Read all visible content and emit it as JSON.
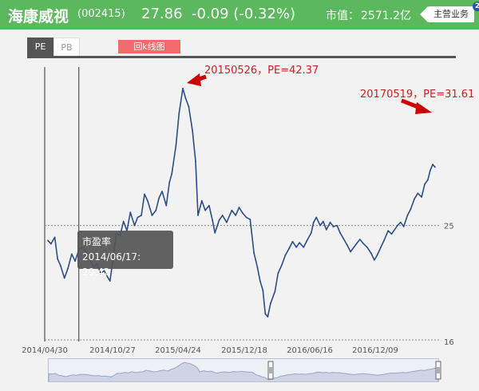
{
  "header": {
    "stock_name": "海康威视",
    "stock_code": "(002415)",
    "price": "27.86",
    "change": "-0.09 (-0.32%)",
    "market_cap_label": "市值：",
    "market_cap_value": "2571.2亿",
    "business_button": "主营业务",
    "badge_count": "2",
    "bg_color": "#5cb85c"
  },
  "tabs": [
    {
      "label": "PE",
      "active": true
    },
    {
      "label": "PB",
      "active": false
    }
  ],
  "kline_button": "回k线图",
  "tooltip": {
    "series_name": "市盈率",
    "text": "2014/06/17: 20.42"
  },
  "annotations": [
    {
      "label": "20150526，PE=42.37",
      "color": "#cc1f1f"
    },
    {
      "label": "20170519，PE=31.61",
      "color": "#cc1f1f"
    }
  ],
  "chart_data": {
    "type": "line",
    "series": [
      {
        "name": "市盈率",
        "color": "#2b4e86",
        "points": [
          [
            "2014-04-30",
            23.6
          ],
          [
            "2014-05-09",
            23.3
          ],
          [
            "2014-05-20",
            23.9
          ],
          [
            "2014-05-28",
            22.0
          ],
          [
            "2014-06-06",
            21.4
          ],
          [
            "2014-06-17",
            20.42
          ],
          [
            "2014-06-27",
            21.2
          ],
          [
            "2014-07-08",
            22.4
          ],
          [
            "2014-07-18",
            21.8
          ],
          [
            "2014-07-29",
            22.8
          ],
          [
            "2014-08-08",
            23.0
          ],
          [
            "2014-08-19",
            22.6
          ],
          [
            "2014-08-29",
            22.0
          ],
          [
            "2014-09-09",
            21.3
          ],
          [
            "2014-09-19",
            21.6
          ],
          [
            "2014-09-30",
            20.8
          ],
          [
            "2014-10-10",
            21.0
          ],
          [
            "2014-10-20",
            20.5
          ],
          [
            "2014-10-27",
            20.2
          ],
          [
            "2014-11-05",
            22.0
          ],
          [
            "2014-11-14",
            24.3
          ],
          [
            "2014-11-25",
            24.0
          ],
          [
            "2014-12-05",
            25.4
          ],
          [
            "2014-12-15",
            24.5
          ],
          [
            "2014-12-25",
            26.3
          ],
          [
            "2015-01-06",
            25.0
          ],
          [
            "2015-01-15",
            25.8
          ],
          [
            "2015-01-26",
            26.0
          ],
          [
            "2015-02-04",
            28.2
          ],
          [
            "2015-02-13",
            27.5
          ],
          [
            "2015-02-26",
            26.0
          ],
          [
            "2015-03-09",
            26.5
          ],
          [
            "2015-03-18",
            27.8
          ],
          [
            "2015-03-27",
            28.5
          ],
          [
            "2015-04-08",
            27.0
          ],
          [
            "2015-04-17",
            29.5
          ],
          [
            "2015-04-24",
            30.5
          ],
          [
            "2015-05-06",
            34.0
          ],
          [
            "2015-05-15",
            38.5
          ],
          [
            "2015-05-26",
            42.37
          ],
          [
            "2015-06-03",
            40.8
          ],
          [
            "2015-06-12",
            39.5
          ],
          [
            "2015-06-23",
            36.0
          ],
          [
            "2015-07-02",
            32.0
          ],
          [
            "2015-07-09",
            26.0
          ],
          [
            "2015-07-20",
            27.5
          ],
          [
            "2015-07-30",
            26.5
          ],
          [
            "2015-08-10",
            27.0
          ],
          [
            "2015-08-20",
            25.5
          ],
          [
            "2015-08-27",
            24.3
          ],
          [
            "2015-09-08",
            25.5
          ],
          [
            "2015-09-18",
            26.0
          ],
          [
            "2015-09-30",
            25.3
          ],
          [
            "2015-10-15",
            26.5
          ],
          [
            "2015-10-26",
            26.0
          ],
          [
            "2015-11-05",
            26.8
          ],
          [
            "2015-11-16",
            26.2
          ],
          [
            "2015-11-26",
            25.8
          ],
          [
            "2015-12-07",
            25.6
          ],
          [
            "2015-12-18",
            22.5
          ],
          [
            "2015-12-28",
            21.3
          ],
          [
            "2016-01-05",
            20.2
          ],
          [
            "2016-01-13",
            19.5
          ],
          [
            "2016-01-20",
            17.8
          ],
          [
            "2016-01-27",
            17.6
          ],
          [
            "2016-02-04",
            18.5
          ],
          [
            "2016-02-17",
            19.4
          ],
          [
            "2016-02-26",
            20.8
          ],
          [
            "2016-03-08",
            21.5
          ],
          [
            "2016-03-18",
            22.3
          ],
          [
            "2016-03-29",
            22.9
          ],
          [
            "2016-04-08",
            23.5
          ],
          [
            "2016-04-19",
            23.0
          ],
          [
            "2016-04-28",
            23.4
          ],
          [
            "2016-05-10",
            23.0
          ],
          [
            "2016-05-20",
            23.6
          ],
          [
            "2016-06-01",
            24.3
          ],
          [
            "2016-06-08",
            25.3
          ],
          [
            "2016-06-16",
            25.8
          ],
          [
            "2016-06-27",
            25.0
          ],
          [
            "2016-07-06",
            25.4
          ],
          [
            "2016-07-15",
            24.6
          ],
          [
            "2016-07-26",
            25.3
          ],
          [
            "2016-08-04",
            24.9
          ],
          [
            "2016-08-15",
            25.0
          ],
          [
            "2016-08-24",
            24.3
          ],
          [
            "2016-09-02",
            23.8
          ],
          [
            "2016-09-13",
            23.2
          ],
          [
            "2016-09-23",
            22.6
          ],
          [
            "2016-10-10",
            23.3
          ],
          [
            "2016-10-20",
            23.7
          ],
          [
            "2016-10-31",
            23.3
          ],
          [
            "2016-11-10",
            23.0
          ],
          [
            "2016-11-21",
            22.5
          ],
          [
            "2016-12-01",
            21.9
          ],
          [
            "2016-12-09",
            22.3
          ],
          [
            "2016-12-20",
            23.0
          ],
          [
            "2016-12-29",
            23.6
          ],
          [
            "2017-01-10",
            24.5
          ],
          [
            "2017-01-20",
            24.2
          ],
          [
            "2017-02-06",
            25.0
          ],
          [
            "2017-02-15",
            25.3
          ],
          [
            "2017-02-24",
            24.9
          ],
          [
            "2017-03-07",
            26.0
          ],
          [
            "2017-03-16",
            26.6
          ],
          [
            "2017-03-27",
            27.7
          ],
          [
            "2017-04-06",
            28.3
          ],
          [
            "2017-04-17",
            27.9
          ],
          [
            "2017-04-26",
            29.3
          ],
          [
            "2017-05-05",
            29.8
          ],
          [
            "2017-05-12",
            30.9
          ],
          [
            "2017-05-19",
            31.61
          ],
          [
            "2017-05-26",
            31.3
          ]
        ]
      }
    ],
    "x_ticks": [
      "2014/04/30",
      "2014/10/27",
      "2015/04/24",
      "2015/12/18",
      "2016/06/16",
      "2016/12/09"
    ],
    "y_ticks": [
      16,
      25
    ],
    "ylim": [
      16,
      46
    ],
    "log_scale": true,
    "reference_line": 25,
    "grid": false,
    "crosshair_date": "2014-06-17"
  }
}
